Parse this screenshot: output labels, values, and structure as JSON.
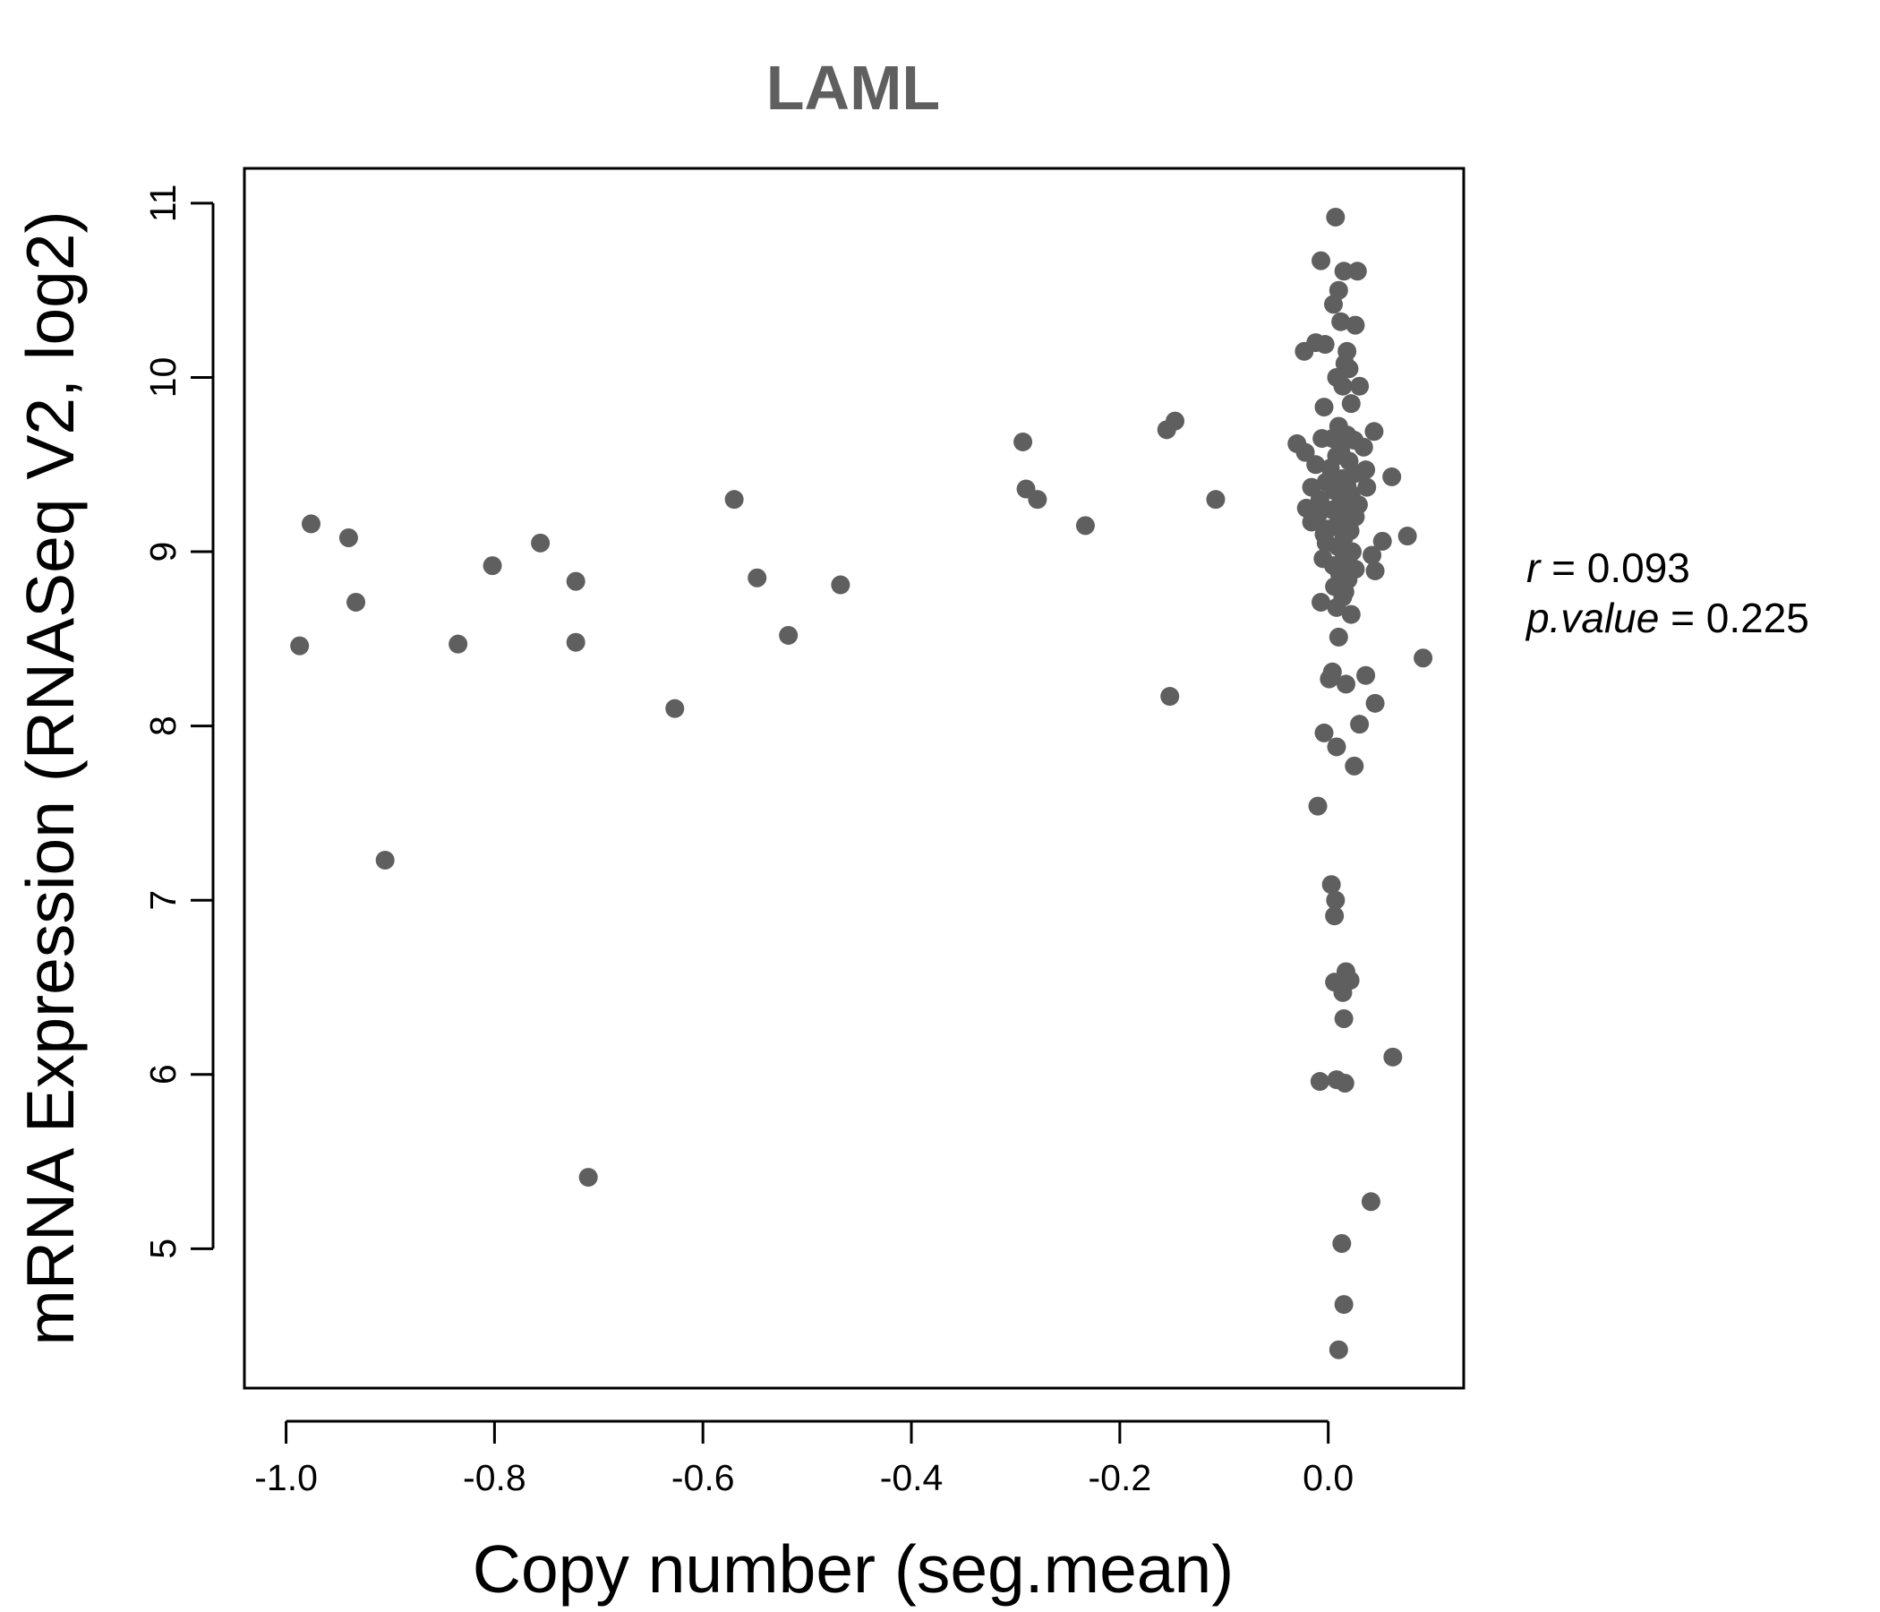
{
  "chart_data": {
    "type": "scatter",
    "title": "LAML",
    "xlabel": "Copy number (seg.mean)",
    "ylabel": "mRNA Expression (RNASeq V2, log2)",
    "xlim": [
      -1.04,
      0.13
    ],
    "ylim": [
      4.2,
      11.2
    ],
    "x_ticks": [
      -1.0,
      -0.8,
      -0.6,
      -0.4,
      -0.2,
      0.0
    ],
    "x_tick_labels": [
      "-1.0",
      "-0.8",
      "-0.6",
      "-0.4",
      "-0.2",
      "0.0"
    ],
    "y_ticks": [
      5,
      6,
      7,
      8,
      9,
      10,
      11
    ],
    "y_tick_labels": [
      "5",
      "6",
      "7",
      "8",
      "9",
      "10",
      "11"
    ],
    "grid": false,
    "point_color": "#5f5f5f",
    "annotations": {
      "r_label": "r",
      "r_value": "0.093",
      "p_label": "p.value",
      "p_value": "0.225"
    },
    "points": [
      [
        -0.987,
        8.46
      ],
      [
        -0.976,
        9.16
      ],
      [
        -0.94,
        9.08
      ],
      [
        -0.933,
        8.71
      ],
      [
        -0.905,
        7.23
      ],
      [
        -0.835,
        8.47
      ],
      [
        -0.802,
        8.92
      ],
      [
        -0.756,
        9.05
      ],
      [
        -0.722,
        8.83
      ],
      [
        -0.722,
        8.48
      ],
      [
        -0.71,
        5.41
      ],
      [
        -0.627,
        8.1
      ],
      [
        -0.57,
        9.3
      ],
      [
        -0.548,
        8.85
      ],
      [
        -0.518,
        8.52
      ],
      [
        -0.468,
        8.81
      ],
      [
        -0.293,
        9.63
      ],
      [
        -0.29,
        9.36
      ],
      [
        -0.279,
        9.3
      ],
      [
        -0.233,
        9.15
      ],
      [
        -0.155,
        9.7
      ],
      [
        -0.147,
        9.75
      ],
      [
        -0.152,
        8.17
      ],
      [
        -0.108,
        9.3
      ],
      [
        0.007,
        10.92
      ],
      [
        -0.007,
        10.67
      ],
      [
        0.015,
        10.61
      ],
      [
        0.028,
        10.61
      ],
      [
        0.01,
        10.5
      ],
      [
        0.005,
        10.42
      ],
      [
        0.012,
        10.32
      ],
      [
        0.026,
        10.3
      ],
      [
        -0.012,
        10.2
      ],
      [
        -0.003,
        10.19
      ],
      [
        -0.023,
        10.15
      ],
      [
        0.018,
        10.15
      ],
      [
        0.016,
        10.08
      ],
      [
        0.02,
        10.05
      ],
      [
        0.008,
        10.0
      ],
      [
        0.014,
        9.95
      ],
      [
        0.03,
        9.95
      ],
      [
        0.022,
        9.85
      ],
      [
        -0.004,
        9.83
      ],
      [
        0.01,
        9.72
      ],
      [
        0.044,
        9.69
      ],
      [
        0.018,
        9.67
      ],
      [
        0.004,
        9.65
      ],
      [
        0.025,
        9.64
      ],
      [
        -0.006,
        9.65
      ],
      [
        -0.03,
        9.62
      ],
      [
        0.034,
        9.6
      ],
      [
        0.012,
        9.58
      ],
      [
        -0.022,
        9.57
      ],
      [
        0.008,
        9.55
      ],
      [
        0.02,
        9.52
      ],
      [
        -0.012,
        9.5
      ],
      [
        0.002,
        9.48
      ],
      [
        0.036,
        9.47
      ],
      [
        0.026,
        9.45
      ],
      [
        0.061,
        9.43
      ],
      [
        0.014,
        9.42
      ],
      [
        -0.002,
        9.4
      ],
      [
        0.018,
        9.38
      ],
      [
        -0.016,
        9.37
      ],
      [
        0.037,
        9.37
      ],
      [
        0.006,
        9.35
      ],
      [
        0.022,
        9.33
      ],
      [
        -0.008,
        9.3
      ],
      [
        0.012,
        9.28
      ],
      [
        0.029,
        9.27
      ],
      [
        -0.021,
        9.25
      ],
      [
        0.004,
        9.24
      ],
      [
        0.017,
        9.22
      ],
      [
        -0.01,
        9.21
      ],
      [
        0.026,
        9.2
      ],
      [
        -0.016,
        9.17
      ],
      [
        0.008,
        9.15
      ],
      [
        0.0,
        9.13
      ],
      [
        0.021,
        9.12
      ],
      [
        -0.004,
        9.1
      ],
      [
        0.015,
        9.08
      ],
      [
        0.076,
        9.09
      ],
      [
        0.052,
        9.06
      ],
      [
        -0.002,
        9.05
      ],
      [
        0.009,
        9.03
      ],
      [
        0.023,
        9.0
      ],
      [
        0.042,
        8.98
      ],
      [
        -0.005,
        8.96
      ],
      [
        0.013,
        8.94
      ],
      [
        0.005,
        8.92
      ],
      [
        0.026,
        8.9
      ],
      [
        0.045,
        8.89
      ],
      [
        0.011,
        8.87
      ],
      [
        0.019,
        8.84
      ],
      [
        0.006,
        8.8
      ],
      [
        0.016,
        8.77
      ],
      [
        0.014,
        8.74
      ],
      [
        -0.007,
        8.71
      ],
      [
        0.008,
        8.68
      ],
      [
        0.022,
        8.64
      ],
      [
        0.01,
        8.51
      ],
      [
        0.091,
        8.39
      ],
      [
        0.004,
        8.31
      ],
      [
        0.036,
        8.29
      ],
      [
        0.001,
        8.27
      ],
      [
        0.017,
        8.24
      ],
      [
        0.045,
        8.13
      ],
      [
        0.03,
        8.01
      ],
      [
        -0.004,
        7.96
      ],
      [
        0.008,
        7.88
      ],
      [
        0.025,
        7.77
      ],
      [
        -0.01,
        7.54
      ],
      [
        0.003,
        7.09
      ],
      [
        0.007,
        7.0
      ],
      [
        0.006,
        6.91
      ],
      [
        0.017,
        6.59
      ],
      [
        0.021,
        6.54
      ],
      [
        0.006,
        6.53
      ],
      [
        0.014,
        6.47
      ],
      [
        0.015,
        6.32
      ],
      [
        0.062,
        6.1
      ],
      [
        -0.008,
        5.96
      ],
      [
        0.008,
        5.97
      ],
      [
        0.016,
        5.95
      ],
      [
        0.041,
        5.27
      ],
      [
        0.013,
        5.03
      ],
      [
        0.015,
        4.68
      ],
      [
        0.01,
        4.42
      ]
    ]
  }
}
